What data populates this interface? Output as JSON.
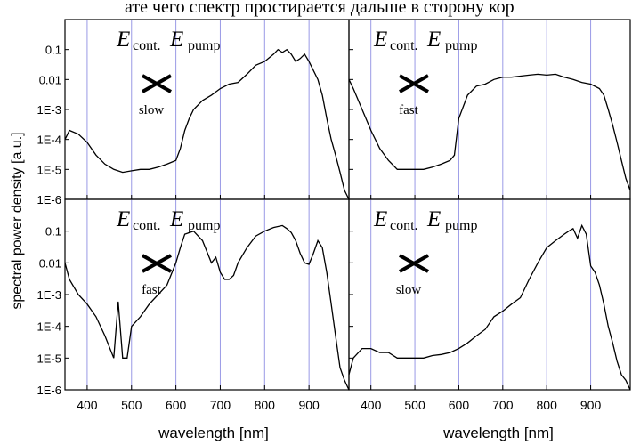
{
  "header_text": "ате чего спектр простирается дальше в сторону кор",
  "chart_data": {
    "type": "line",
    "ylabel": "spectral power density [a.u.]",
    "xlabel": "wavelength [nm]",
    "yscale": "log",
    "ylim": [
      1e-06,
      1
    ],
    "xlim": [
      350,
      990
    ],
    "x_ticks": [
      400,
      500,
      600,
      700,
      800,
      900
    ],
    "y_ticks": [
      "1E-6",
      "1E-5",
      "1E-4",
      "1E-3",
      "0.01",
      "0.1"
    ],
    "grid_x": [
      400,
      500,
      600,
      700,
      800,
      900
    ],
    "panels": [
      {
        "position": "top-left",
        "annotation": {
          "field1": "E",
          "sub1": "cont.",
          "field2": "E",
          "sub2": "pump",
          "regime": "slow"
        },
        "series": [
          {
            "x": [
              350,
              360,
              380,
              400,
              420,
              440,
              460,
              480,
              500,
              520,
              540,
              560,
              580,
              600,
              610,
              620,
              630,
              640,
              660,
              680,
              700,
              720,
              740,
              760,
              780,
              800,
              820,
              830,
              840,
              850,
              860,
              870,
              880,
              890,
              900,
              910,
              920,
              930,
              940,
              950,
              960,
              970,
              980,
              990
            ],
            "y": [
              0.0001,
              0.0002,
              0.00015,
              8e-05,
              3e-05,
              1.5e-05,
              1e-05,
              8e-06,
              9e-06,
              1e-05,
              1e-05,
              1.2e-05,
              1.5e-05,
              2e-05,
              5e-05,
              0.0002,
              0.0005,
              0.001,
              0.002,
              0.003,
              0.005,
              0.007,
              0.008,
              0.015,
              0.03,
              0.04,
              0.07,
              0.1,
              0.08,
              0.1,
              0.07,
              0.04,
              0.05,
              0.07,
              0.04,
              0.02,
              0.01,
              0.003,
              0.0005,
              0.0001,
              3e-05,
              8e-06,
              2e-06,
              1e-06
            ]
          }
        ]
      },
      {
        "position": "top-right",
        "annotation": {
          "field1": "E",
          "sub1": "cont.",
          "field2": "E",
          "sub2": "pump",
          "regime": "fast"
        },
        "series": [
          {
            "x": [
              350,
              360,
              380,
              400,
              420,
              440,
              460,
              480,
              500,
              520,
              540,
              560,
              580,
              590,
              600,
              620,
              640,
              660,
              680,
              700,
              720,
              740,
              760,
              780,
              800,
              820,
              840,
              860,
              880,
              900,
              920,
              930,
              940,
              950,
              960,
              970,
              980,
              990
            ],
            "y": [
              0.01,
              0.005,
              0.001,
              0.0002,
              5e-05,
              2e-05,
              1e-05,
              1e-05,
              1e-05,
              1e-05,
              1.2e-05,
              1.5e-05,
              2e-05,
              3e-05,
              0.0005,
              0.003,
              0.006,
              0.007,
              0.01,
              0.012,
              0.012,
              0.013,
              0.014,
              0.015,
              0.014,
              0.015,
              0.012,
              0.01,
              0.008,
              0.007,
              0.005,
              0.003,
              0.001,
              0.0003,
              8e-05,
              2e-05,
              5e-06,
              2e-06
            ]
          }
        ]
      },
      {
        "position": "bottom-left",
        "annotation": {
          "field1": "E",
          "sub1": "cont.",
          "field2": "E",
          "sub2": "pump",
          "regime": "fast"
        },
        "series": [
          {
            "x": [
              350,
              360,
              380,
              400,
              420,
              440,
              460,
              470,
              480,
              490,
              500,
              520,
              540,
              560,
              580,
              600,
              610,
              620,
              640,
              660,
              680,
              690,
              700,
              710,
              720,
              730,
              740,
              760,
              780,
              800,
              820,
              840,
              850,
              860,
              870,
              880,
              890,
              900,
              910,
              920,
              930,
              940,
              950,
              960,
              970,
              980,
              990
            ],
            "y": [
              0.01,
              0.003,
              0.001,
              0.0005,
              0.0002,
              5e-05,
              1e-05,
              0.0006,
              1e-05,
              1e-05,
              0.0001,
              0.0002,
              0.0005,
              0.001,
              0.002,
              0.01,
              0.03,
              0.08,
              0.1,
              0.05,
              0.01,
              0.015,
              0.005,
              0.003,
              0.003,
              0.004,
              0.01,
              0.03,
              0.07,
              0.1,
              0.13,
              0.15,
              0.12,
              0.09,
              0.05,
              0.02,
              0.01,
              0.009,
              0.02,
              0.05,
              0.03,
              0.005,
              0.0005,
              5e-05,
              5e-06,
              2e-06,
              1e-06
            ]
          }
        ]
      },
      {
        "position": "bottom-right",
        "annotation": {
          "field1": "E",
          "sub1": "cont.",
          "field2": "E",
          "sub2": "pump",
          "regime": "slow"
        },
        "series": [
          {
            "x": [
              350,
              360,
              380,
              400,
              420,
              440,
              460,
              480,
              500,
              520,
              540,
              560,
              580,
              600,
              620,
              640,
              660,
              680,
              700,
              720,
              740,
              760,
              780,
              800,
              820,
              840,
              850,
              860,
              870,
              880,
              890,
              900,
              910,
              920,
              930,
              940,
              950,
              960,
              970,
              980,
              990
            ],
            "y": [
              3e-06,
              1e-05,
              2e-05,
              2e-05,
              1.5e-05,
              1.5e-05,
              1e-05,
              1e-05,
              1e-05,
              1e-05,
              1.2e-05,
              1.3e-05,
              1.5e-05,
              2e-05,
              3e-05,
              5e-05,
              8e-05,
              0.0002,
              0.0003,
              0.0005,
              0.0008,
              0.003,
              0.01,
              0.03,
              0.05,
              0.08,
              0.1,
              0.12,
              0.06,
              0.15,
              0.08,
              0.008,
              0.005,
              0.002,
              0.0005,
              0.0001,
              3e-05,
              8e-06,
              3e-06,
              2e-06,
              1e-06
            ]
          }
        ]
      }
    ]
  }
}
